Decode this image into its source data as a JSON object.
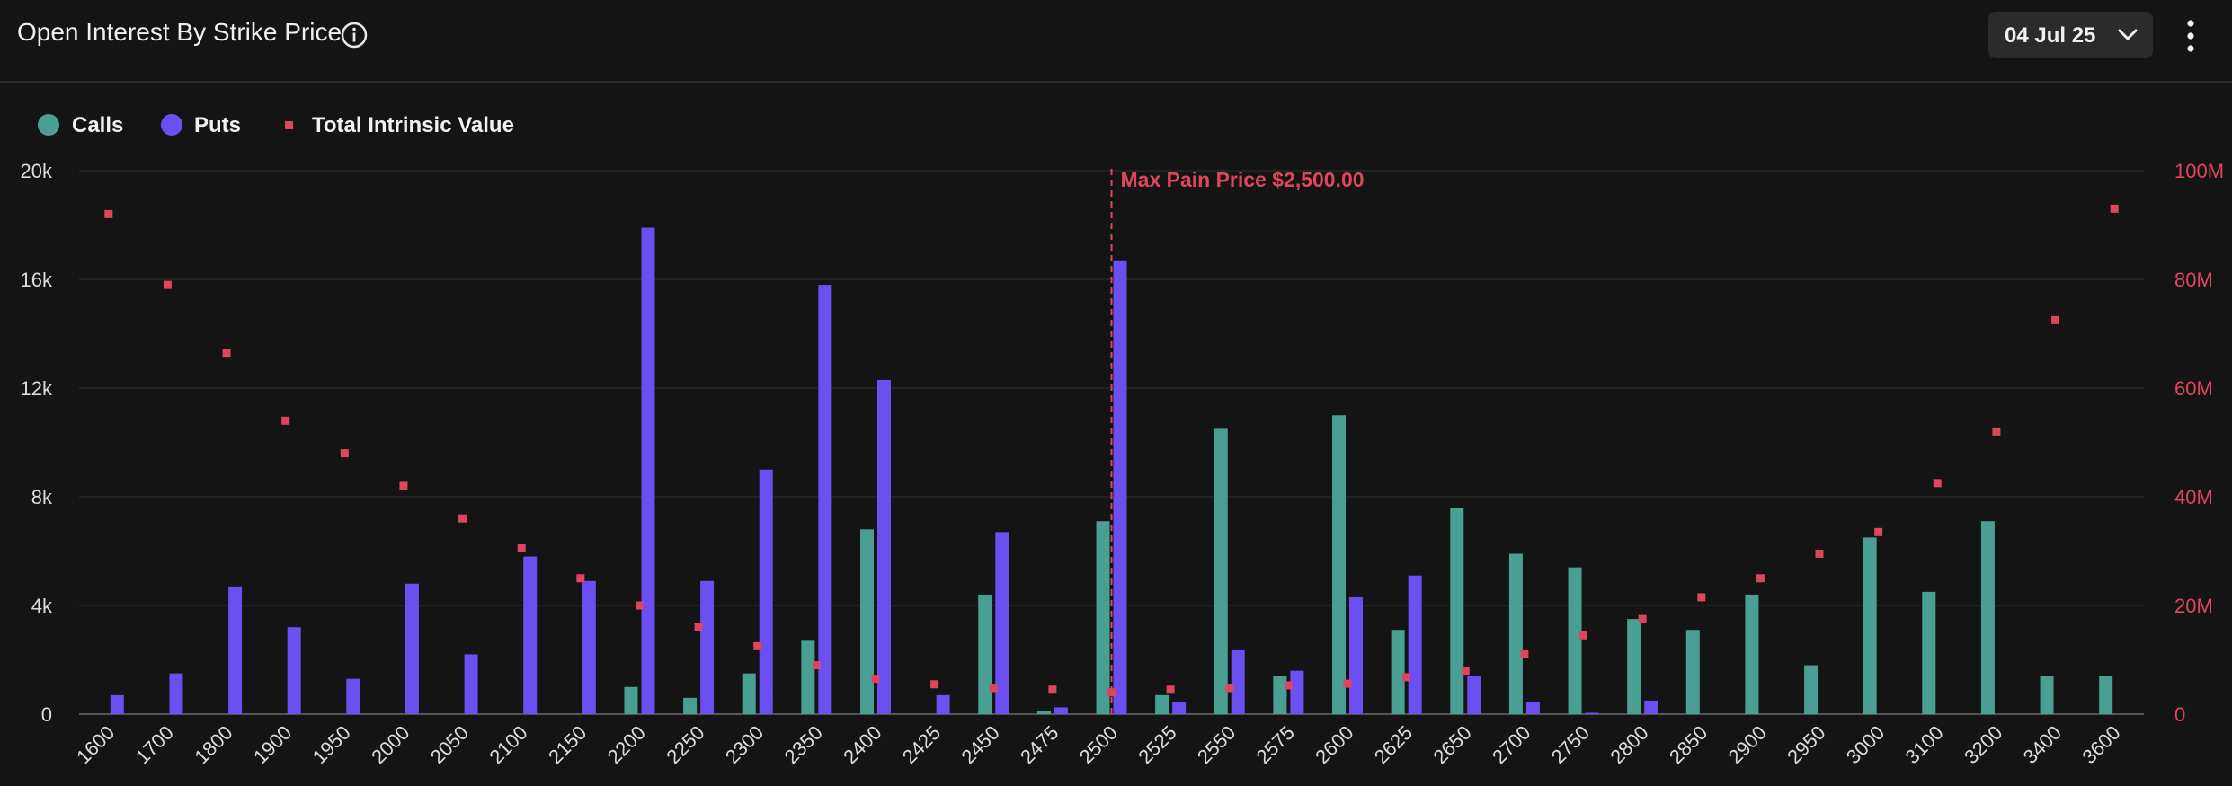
{
  "header": {
    "title": "Open Interest By Strike Price",
    "date_label": "04 Jul 25",
    "info_icon": "info-icon",
    "more_icon": "more-vertical-icon",
    "chevron_icon": "chevron-down-icon"
  },
  "colors": {
    "calls": "#4a9f93",
    "puts": "#6b4ff0",
    "intrinsic": "#e0455f",
    "max_pain": "#e0455f"
  },
  "chart_data": {
    "type": "bar",
    "title": "Open Interest By Strike Price",
    "legend": [
      "Calls",
      "Puts",
      "Total Intrinsic Value"
    ],
    "legend_position": "top-left",
    "grid": true,
    "categories": [
      "1600",
      "1700",
      "1800",
      "1900",
      "1950",
      "2000",
      "2050",
      "2100",
      "2150",
      "2200",
      "2250",
      "2300",
      "2350",
      "2400",
      "2425",
      "2450",
      "2475",
      "2500",
      "2525",
      "2550",
      "2575",
      "2600",
      "2625",
      "2650",
      "2700",
      "2750",
      "2800",
      "2850",
      "2900",
      "2950",
      "3000",
      "3100",
      "3200",
      "3400",
      "3600"
    ],
    "y_left": {
      "ticks": [
        "0",
        "4k",
        "8k",
        "12k",
        "16k",
        "20k"
      ],
      "range": [
        0,
        20000
      ]
    },
    "y_right": {
      "ticks": [
        "0",
        "20M",
        "40M",
        "60M",
        "80M",
        "100M"
      ],
      "range": [
        0,
        100000000
      ]
    },
    "series": [
      {
        "name": "Calls",
        "axis": "left",
        "type": "bar",
        "values": [
          0,
          0,
          0,
          0,
          0,
          0,
          0,
          0,
          0,
          1000,
          600,
          1500,
          2700,
          6800,
          0,
          4400,
          100,
          7100,
          700,
          10500,
          1400,
          11000,
          3100,
          7600,
          5900,
          5400,
          3500,
          3100,
          4400,
          1800,
          6500,
          4500,
          7100,
          1400,
          1400
        ]
      },
      {
        "name": "Puts",
        "axis": "left",
        "type": "bar",
        "values": [
          700,
          1500,
          4700,
          3200,
          1300,
          4800,
          2200,
          5800,
          4900,
          17900,
          4900,
          9000,
          15800,
          12300,
          700,
          6700,
          250,
          16700,
          450,
          2350,
          1600,
          4300,
          5100,
          1400,
          450,
          50,
          500,
          0,
          0,
          0,
          0,
          0,
          0,
          0,
          0
        ]
      },
      {
        "name": "Total Intrinsic Value",
        "axis": "right",
        "type": "scatter",
        "values": [
          92000000,
          79000000,
          66500000,
          54000000,
          48000000,
          42000000,
          36000000,
          30500000,
          25000000,
          20000000,
          16000000,
          12500000,
          9000000,
          6500000,
          5500000,
          4800000,
          4500000,
          4000000,
          4500000,
          4800000,
          5300000,
          5600000,
          6800000,
          8000000,
          11000000,
          14500000,
          17500000,
          21500000,
          25000000,
          29500000,
          33500000,
          42500000,
          52000000,
          72500000,
          93000000
        ]
      }
    ],
    "annotation": {
      "label": "Max Pain Price $2,500.00",
      "category": "2500"
    }
  }
}
